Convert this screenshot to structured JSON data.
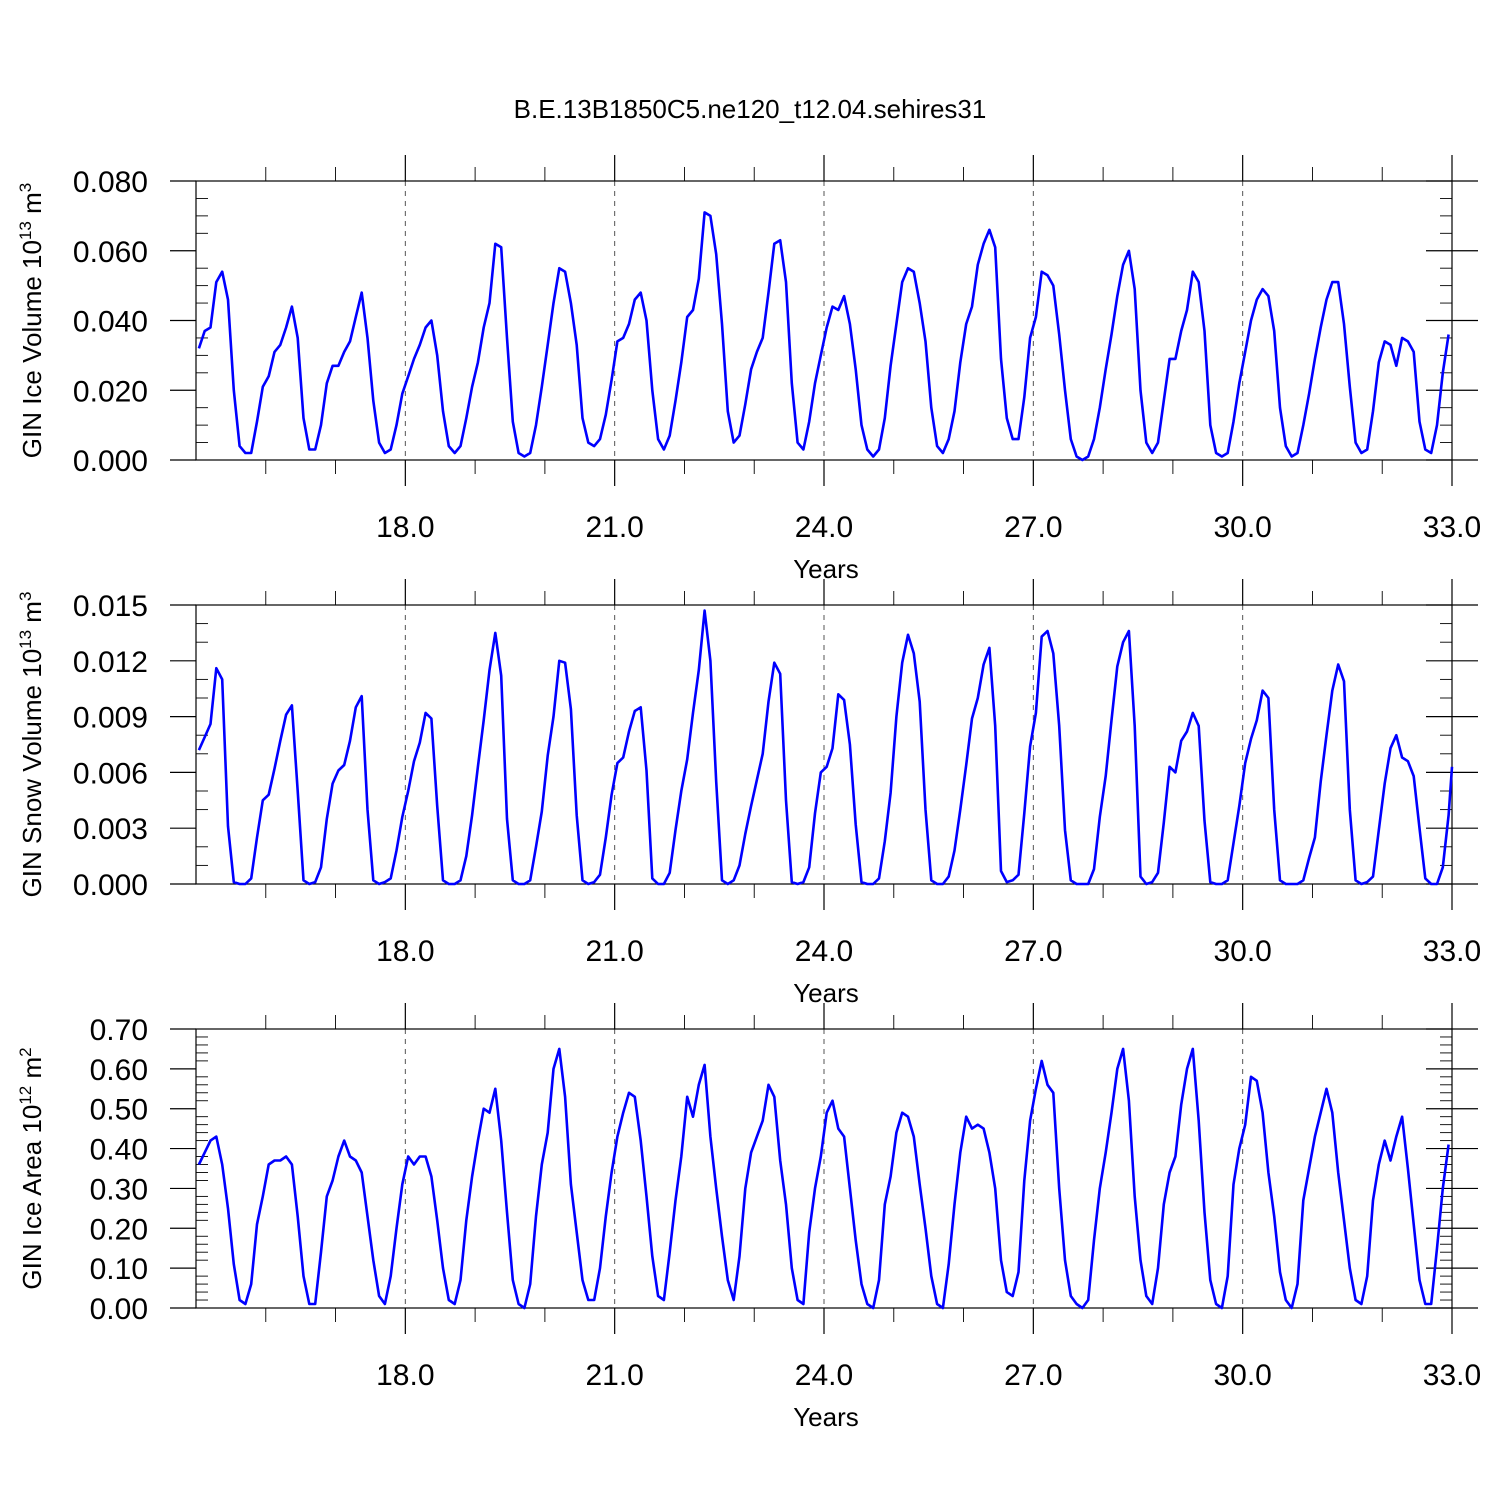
{
  "figure": {
    "title": "B.E.13B1850C5.ne120_t12.04.sehires31",
    "line_color": "#0000ff"
  },
  "chart_data": [
    {
      "type": "line",
      "title": "",
      "xlabel": "Years",
      "ylabel": "GIN Ice Volume 10^13 m^3",
      "ylabel_parts": {
        "main": "GIN Ice Volume 10",
        "exp": "13",
        "unit": " m",
        "unit_exp": "3"
      },
      "xlim": [
        15.0,
        33.0
      ],
      "ylim": [
        0.0,
        0.08
      ],
      "xticks": [
        18.0,
        21.0,
        24.0,
        27.0,
        30.0,
        33.0
      ],
      "xtick_labels": [
        "18.0",
        "21.0",
        "24.0",
        "27.0",
        "30.0",
        "33.0"
      ],
      "yticks": [
        0.0,
        0.02,
        0.04,
        0.06,
        0.08
      ],
      "ytick_labels": [
        "0.000",
        "0.020",
        "0.040",
        "0.060",
        "0.080"
      ],
      "yminor_step": 0.005,
      "xminor": [
        16.0,
        17.0,
        19.0,
        20.0,
        22.0,
        23.0,
        25.0,
        26.0,
        28.0,
        29.0,
        31.0,
        32.0
      ],
      "grid": "dashed vertical lines at x ticks",
      "series": [
        {
          "name": "",
          "color": "#0000ff",
          "x_start": 15.0417,
          "x_step": 0.0833,
          "values": [
            0.032,
            0.037,
            0.038,
            0.051,
            0.054,
            0.046,
            0.02,
            0.004,
            0.002,
            0.002,
            0.011,
            0.021,
            0.024,
            0.031,
            0.033,
            0.038,
            0.044,
            0.035,
            0.012,
            0.003,
            0.003,
            0.01,
            0.022,
            0.027,
            0.027,
            0.031,
            0.034,
            0.041,
            0.048,
            0.035,
            0.017,
            0.005,
            0.002,
            0.003,
            0.01,
            0.019,
            0.024,
            0.029,
            0.033,
            0.038,
            0.04,
            0.03,
            0.014,
            0.004,
            0.002,
            0.004,
            0.012,
            0.021,
            0.028,
            0.038,
            0.045,
            0.062,
            0.061,
            0.035,
            0.011,
            0.002,
            0.001,
            0.002,
            0.01,
            0.021,
            0.033,
            0.045,
            0.055,
            0.054,
            0.045,
            0.033,
            0.012,
            0.005,
            0.004,
            0.006,
            0.013,
            0.023,
            0.034,
            0.035,
            0.039,
            0.046,
            0.048,
            0.04,
            0.02,
            0.006,
            0.003,
            0.007,
            0.017,
            0.028,
            0.041,
            0.043,
            0.052,
            0.071,
            0.07,
            0.059,
            0.039,
            0.014,
            0.005,
            0.007,
            0.016,
            0.026,
            0.031,
            0.035,
            0.048,
            0.062,
            0.063,
            0.051,
            0.022,
            0.005,
            0.003,
            0.011,
            0.022,
            0.03,
            0.038,
            0.044,
            0.043,
            0.047,
            0.039,
            0.026,
            0.01,
            0.003,
            0.001,
            0.003,
            0.012,
            0.027,
            0.039,
            0.051,
            0.055,
            0.054,
            0.045,
            0.034,
            0.015,
            0.004,
            0.002,
            0.006,
            0.014,
            0.028,
            0.039,
            0.044,
            0.056,
            0.062,
            0.066,
            0.061,
            0.029,
            0.012,
            0.006,
            0.006,
            0.018,
            0.035,
            0.041,
            0.054,
            0.053,
            0.05,
            0.036,
            0.02,
            0.006,
            0.001,
            0.0,
            0.001,
            0.006,
            0.015,
            0.026,
            0.036,
            0.047,
            0.056,
            0.06,
            0.049,
            0.02,
            0.005,
            0.002,
            0.005,
            0.017,
            0.029,
            0.029,
            0.037,
            0.043,
            0.054,
            0.051,
            0.037,
            0.01,
            0.002,
            0.001,
            0.002,
            0.011,
            0.022,
            0.031,
            0.04,
            0.046,
            0.049,
            0.047,
            0.037,
            0.015,
            0.004,
            0.001,
            0.002,
            0.01,
            0.019,
            0.029,
            0.038,
            0.046,
            0.051,
            0.051,
            0.039,
            0.021,
            0.005,
            0.002,
            0.003,
            0.014,
            0.028,
            0.034,
            0.033,
            0.027,
            0.035,
            0.034,
            0.031,
            0.011,
            0.003,
            0.002,
            0.01,
            0.025,
            0.036
          ]
        }
      ]
    },
    {
      "type": "line",
      "title": "",
      "xlabel": "Years",
      "ylabel": "GIN Snow Volume 10^13 m^3",
      "ylabel_parts": {
        "main": "GIN Snow Volume 10",
        "exp": "13",
        "unit": " m",
        "unit_exp": "3"
      },
      "xlim": [
        15.0,
        33.0
      ],
      "ylim": [
        0.0,
        0.015
      ],
      "xticks": [
        18.0,
        21.0,
        24.0,
        27.0,
        30.0,
        33.0
      ],
      "xtick_labels": [
        "18.0",
        "21.0",
        "24.0",
        "27.0",
        "30.0",
        "33.0"
      ],
      "yticks": [
        0.0,
        0.003,
        0.006,
        0.009,
        0.012,
        0.015
      ],
      "ytick_labels": [
        "0.000",
        "0.003",
        "0.006",
        "0.009",
        "0.012",
        "0.015"
      ],
      "yminor_step": 0.001,
      "xminor": [
        16.0,
        17.0,
        19.0,
        20.0,
        22.0,
        23.0,
        25.0,
        26.0,
        28.0,
        29.0,
        31.0,
        32.0
      ],
      "grid": "dashed vertical lines at x ticks",
      "series": [
        {
          "name": "",
          "color": "#0000ff",
          "x_start": 15.0417,
          "x_step": 0.0833,
          "values": [
            0.0072,
            0.0079,
            0.0086,
            0.0116,
            0.011,
            0.0031,
            0.0001,
            0.0,
            0.0,
            0.0003,
            0.0025,
            0.0045,
            0.0048,
            0.0062,
            0.0077,
            0.0091,
            0.0096,
            0.005,
            0.0002,
            0.0,
            0.0001,
            0.0009,
            0.0035,
            0.0054,
            0.0061,
            0.0064,
            0.0077,
            0.0095,
            0.0101,
            0.004,
            0.0002,
            0.0,
            0.0001,
            0.0003,
            0.0018,
            0.0036,
            0.005,
            0.0066,
            0.0076,
            0.0092,
            0.0089,
            0.0042,
            0.0002,
            0.0,
            0.0,
            0.0002,
            0.0015,
            0.0037,
            0.0063,
            0.0088,
            0.0115,
            0.0135,
            0.0112,
            0.0035,
            0.0002,
            0.0,
            0.0,
            0.0002,
            0.002,
            0.0039,
            0.0069,
            0.009,
            0.012,
            0.0119,
            0.0094,
            0.0037,
            0.0002,
            0.0,
            0.0001,
            0.0005,
            0.0025,
            0.0048,
            0.0065,
            0.0068,
            0.0082,
            0.0093,
            0.0095,
            0.0061,
            0.0003,
            0.0,
            0.0,
            0.0006,
            0.0029,
            0.005,
            0.0067,
            0.0092,
            0.0115,
            0.0147,
            0.012,
            0.0055,
            0.0002,
            0.0,
            0.0002,
            0.001,
            0.0027,
            0.0042,
            0.0056,
            0.007,
            0.0098,
            0.0119,
            0.0113,
            0.0045,
            0.0001,
            0.0,
            0.0001,
            0.0009,
            0.0038,
            0.006,
            0.0063,
            0.0073,
            0.0102,
            0.0099,
            0.0075,
            0.0032,
            0.0001,
            0.0,
            0.0,
            0.0003,
            0.0023,
            0.0049,
            0.009,
            0.0119,
            0.0134,
            0.0124,
            0.0098,
            0.004,
            0.0002,
            0.0,
            0.0,
            0.0004,
            0.0018,
            0.004,
            0.0064,
            0.0089,
            0.01,
            0.0118,
            0.0127,
            0.0085,
            0.0007,
            0.0001,
            0.0002,
            0.0005,
            0.0038,
            0.0074,
            0.0092,
            0.0133,
            0.0136,
            0.0124,
            0.0085,
            0.0029,
            0.0002,
            0.0,
            0.0,
            0.0,
            0.0008,
            0.0036,
            0.0058,
            0.0088,
            0.0117,
            0.013,
            0.0136,
            0.0085,
            0.0004,
            0.0,
            0.0001,
            0.0006,
            0.0033,
            0.0063,
            0.006,
            0.0077,
            0.0082,
            0.0092,
            0.0085,
            0.0034,
            0.0001,
            0.0,
            0.0,
            0.0002,
            0.0022,
            0.0042,
            0.0065,
            0.0078,
            0.0088,
            0.0104,
            0.01,
            0.004,
            0.0002,
            0.0,
            0.0,
            0.0,
            0.0002,
            0.0014,
            0.0025,
            0.0055,
            0.008,
            0.0104,
            0.0118,
            0.0109,
            0.004,
            0.0002,
            0.0,
            0.0001,
            0.0004,
            0.0029,
            0.0054,
            0.0073,
            0.008,
            0.0068,
            0.0066,
            0.0058,
            0.003,
            0.0003,
            0.0,
            0.0,
            0.0009,
            0.0037,
            0.0063
          ]
        }
      ]
    },
    {
      "type": "line",
      "title": "",
      "xlabel": "Years",
      "ylabel": "GIN Ice Area 10^12 m^2",
      "ylabel_parts": {
        "main": "GIN Ice Area 10",
        "exp": "12",
        "unit": " m",
        "unit_exp": "2"
      },
      "xlim": [
        15.0,
        33.0
      ],
      "ylim": [
        0.0,
        0.7
      ],
      "xticks": [
        18.0,
        21.0,
        24.0,
        27.0,
        30.0,
        33.0
      ],
      "xtick_labels": [
        "18.0",
        "21.0",
        "24.0",
        "27.0",
        "30.0",
        "33.0"
      ],
      "yticks": [
        0.0,
        0.1,
        0.2,
        0.3,
        0.4,
        0.5,
        0.6,
        0.7
      ],
      "ytick_labels": [
        "0.00",
        "0.10",
        "0.20",
        "0.30",
        "0.40",
        "0.50",
        "0.60",
        "0.70"
      ],
      "yminor_step": 0.02,
      "xminor": [
        16.0,
        17.0,
        19.0,
        20.0,
        22.0,
        23.0,
        25.0,
        26.0,
        28.0,
        29.0,
        31.0,
        32.0
      ],
      "grid": "dashed vertical lines at x ticks",
      "series": [
        {
          "name": "",
          "color": "#0000ff",
          "x_start": 15.0417,
          "x_step": 0.0833,
          "values": [
            0.36,
            0.39,
            0.42,
            0.43,
            0.36,
            0.25,
            0.11,
            0.02,
            0.01,
            0.06,
            0.21,
            0.28,
            0.36,
            0.37,
            0.37,
            0.38,
            0.36,
            0.23,
            0.08,
            0.01,
            0.01,
            0.14,
            0.28,
            0.32,
            0.38,
            0.42,
            0.38,
            0.37,
            0.34,
            0.23,
            0.12,
            0.03,
            0.01,
            0.08,
            0.2,
            0.31,
            0.38,
            0.36,
            0.38,
            0.38,
            0.33,
            0.22,
            0.1,
            0.02,
            0.01,
            0.07,
            0.22,
            0.33,
            0.42,
            0.5,
            0.49,
            0.55,
            0.42,
            0.24,
            0.07,
            0.01,
            0.0,
            0.06,
            0.23,
            0.36,
            0.44,
            0.6,
            0.65,
            0.53,
            0.31,
            0.19,
            0.07,
            0.02,
            0.02,
            0.1,
            0.23,
            0.34,
            0.43,
            0.49,
            0.54,
            0.53,
            0.42,
            0.28,
            0.13,
            0.03,
            0.02,
            0.14,
            0.27,
            0.38,
            0.53,
            0.48,
            0.56,
            0.61,
            0.43,
            0.3,
            0.18,
            0.07,
            0.02,
            0.13,
            0.3,
            0.39,
            0.43,
            0.47,
            0.56,
            0.53,
            0.37,
            0.26,
            0.1,
            0.02,
            0.01,
            0.19,
            0.3,
            0.38,
            0.49,
            0.52,
            0.45,
            0.43,
            0.3,
            0.17,
            0.06,
            0.01,
            0.0,
            0.07,
            0.26,
            0.33,
            0.44,
            0.49,
            0.48,
            0.43,
            0.31,
            0.2,
            0.08,
            0.01,
            0.0,
            0.11,
            0.26,
            0.39,
            0.48,
            0.45,
            0.46,
            0.45,
            0.39,
            0.3,
            0.12,
            0.04,
            0.03,
            0.09,
            0.32,
            0.47,
            0.55,
            0.62,
            0.56,
            0.54,
            0.3,
            0.12,
            0.03,
            0.01,
            0.0,
            0.02,
            0.17,
            0.3,
            0.39,
            0.49,
            0.6,
            0.65,
            0.52,
            0.28,
            0.12,
            0.03,
            0.01,
            0.1,
            0.26,
            0.34,
            0.38,
            0.51,
            0.6,
            0.65,
            0.47,
            0.24,
            0.07,
            0.01,
            0.0,
            0.08,
            0.31,
            0.4,
            0.46,
            0.58,
            0.57,
            0.49,
            0.34,
            0.23,
            0.09,
            0.02,
            0.0,
            0.06,
            0.27,
            0.35,
            0.43,
            0.49,
            0.55,
            0.49,
            0.34,
            0.22,
            0.1,
            0.02,
            0.01,
            0.08,
            0.27,
            0.36,
            0.42,
            0.37,
            0.43,
            0.48,
            0.35,
            0.21,
            0.07,
            0.01,
            0.01,
            0.15,
            0.3,
            0.41
          ]
        }
      ]
    }
  ]
}
